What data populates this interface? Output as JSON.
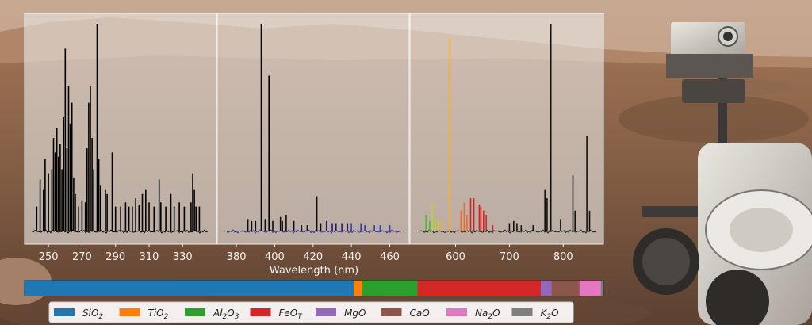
{
  "chart_data": {
    "type": "line",
    "title": "",
    "xlabel": "Wavelength (nm)",
    "ylabel": "",
    "panels": [
      {
        "xlim": [
          240,
          345
        ],
        "xticks": [
          250,
          270,
          290,
          310,
          330
        ],
        "color_mode": "black",
        "peaks": [
          [
            243,
            0.12
          ],
          [
            245,
            0.25
          ],
          [
            247,
            0.2
          ],
          [
            248,
            0.35
          ],
          [
            250,
            0.28
          ],
          [
            252,
            0.3
          ],
          [
            253,
            0.45
          ],
          [
            254,
            0.38
          ],
          [
            255,
            0.5
          ],
          [
            256,
            0.36
          ],
          [
            257,
            0.42
          ],
          [
            258,
            0.3
          ],
          [
            259,
            0.55
          ],
          [
            260,
            0.88
          ],
          [
            261,
            0.4
          ],
          [
            262,
            0.7
          ],
          [
            263,
            0.52
          ],
          [
            264,
            0.62
          ],
          [
            265,
            0.26
          ],
          [
            266,
            0.18
          ],
          [
            268,
            0.12
          ],
          [
            270,
            0.15
          ],
          [
            272,
            0.14
          ],
          [
            273,
            0.4
          ],
          [
            274,
            0.62
          ],
          [
            275,
            0.7
          ],
          [
            276,
            0.45
          ],
          [
            277,
            0.3
          ],
          [
            279,
            1.0
          ],
          [
            280,
            0.35
          ],
          [
            281,
            0.22
          ],
          [
            284,
            0.2
          ],
          [
            285,
            0.18
          ],
          [
            288,
            0.38
          ],
          [
            290,
            0.12
          ],
          [
            293,
            0.12
          ],
          [
            296,
            0.14
          ],
          [
            298,
            0.12
          ],
          [
            300,
            0.12
          ],
          [
            302,
            0.16
          ],
          [
            304,
            0.13
          ],
          [
            306,
            0.18
          ],
          [
            308,
            0.2
          ],
          [
            310,
            0.14
          ],
          [
            313,
            0.12
          ],
          [
            316,
            0.25
          ],
          [
            317,
            0.14
          ],
          [
            320,
            0.12
          ],
          [
            323,
            0.18
          ],
          [
            325,
            0.12
          ],
          [
            328,
            0.14
          ],
          [
            331,
            0.12
          ],
          [
            335,
            0.14
          ],
          [
            336,
            0.28
          ],
          [
            337,
            0.2
          ],
          [
            338,
            0.12
          ],
          [
            340,
            0.12
          ]
        ]
      },
      {
        "xlim": [
          375,
          466
        ],
        "xticks": [
          380,
          400,
          420,
          440,
          460
        ],
        "color_mode": "blue-violet",
        "peaks": [
          [
            386,
            0.06
          ],
          [
            388,
            0.05
          ],
          [
            390,
            0.05
          ],
          [
            393,
            1.0
          ],
          [
            395,
            0.06
          ],
          [
            397,
            0.75
          ],
          [
            399,
            0.05
          ],
          [
            403,
            0.07
          ],
          [
            404,
            0.05
          ],
          [
            406,
            0.08
          ],
          [
            410,
            0.05
          ],
          [
            414,
            0.03
          ],
          [
            417,
            0.03
          ],
          [
            422,
            0.17
          ],
          [
            424,
            0.04
          ],
          [
            427,
            0.05
          ],
          [
            430,
            0.04
          ],
          [
            432,
            0.04
          ],
          [
            435,
            0.04
          ],
          [
            438,
            0.04
          ],
          [
            440,
            0.04
          ],
          [
            445,
            0.04
          ],
          [
            447,
            0.03
          ],
          [
            452,
            0.03
          ],
          [
            455,
            0.03
          ],
          [
            460,
            0.03
          ]
        ]
      },
      {
        "xlim": [
          530,
          860
        ],
        "xticks": [
          600,
          700,
          800
        ],
        "color_mode": "spectrum",
        "peaks": [
          [
            545,
            0.08
          ],
          [
            552,
            0.05
          ],
          [
            557,
            0.14
          ],
          [
            562,
            0.06
          ],
          [
            568,
            0.05
          ],
          [
            575,
            0.05
          ],
          [
            589,
            0.93
          ],
          [
            610,
            0.1
          ],
          [
            616,
            0.14
          ],
          [
            621,
            0.08
          ],
          [
            628,
            0.16
          ],
          [
            634,
            0.16
          ],
          [
            644,
            0.13
          ],
          [
            647,
            0.12
          ],
          [
            652,
            0.1
          ],
          [
            657,
            0.08
          ],
          [
            669,
            0.03
          ],
          [
            700,
            0.04
          ],
          [
            708,
            0.05
          ],
          [
            714,
            0.04
          ],
          [
            722,
            0.03
          ],
          [
            744,
            0.03
          ],
          [
            766,
            0.2
          ],
          [
            770,
            0.16
          ],
          [
            777,
            1.0
          ],
          [
            795,
            0.06
          ],
          [
            818,
            0.27
          ],
          [
            822,
            0.1
          ],
          [
            844,
            0.46
          ],
          [
            849,
            0.1
          ]
        ]
      }
    ],
    "composition": [
      {
        "name": "SiO₂",
        "value": 53.5,
        "color": "#1f77b4"
      },
      {
        "name": "TiO₂",
        "value": 1.4,
        "color": "#ff7f0e"
      },
      {
        "name": "Al₂O₃",
        "value": 9.0,
        "color": "#2ca02c"
      },
      {
        "name": "FeO_T",
        "value": 20.0,
        "color": "#d62728"
      },
      {
        "name": "MgO",
        "value": 1.8,
        "color": "#9467bd"
      },
      {
        "name": "CaO",
        "value": 4.5,
        "color": "#8c564b"
      },
      {
        "name": "Na₂O",
        "value": 3.5,
        "color": "#e377c2"
      },
      {
        "name": "K₂O",
        "value": 0.4,
        "color": "#7f7f7f"
      }
    ]
  },
  "legend": [
    {
      "base": "SiO",
      "sub": "2",
      "color": "#1f77b4"
    },
    {
      "base": "TiO",
      "sub": "2",
      "color": "#ff7f0e"
    },
    {
      "base": "Al",
      "sub": "2",
      "base2": "O",
      "sub2": "3",
      "color": "#2ca02c"
    },
    {
      "base": "FeO",
      "sub": "T",
      "color": "#d62728"
    },
    {
      "base": "MgO",
      "sub": "",
      "color": "#9467bd"
    },
    {
      "base": "CaO",
      "sub": "",
      "color": "#8c564b"
    },
    {
      "base": "Na",
      "sub": "2",
      "base2": "O",
      "sub2": "",
      "color": "#e377c2"
    },
    {
      "base": "K",
      "sub": "2",
      "base2": "O",
      "sub2": "",
      "color": "#7f7f7f"
    }
  ]
}
